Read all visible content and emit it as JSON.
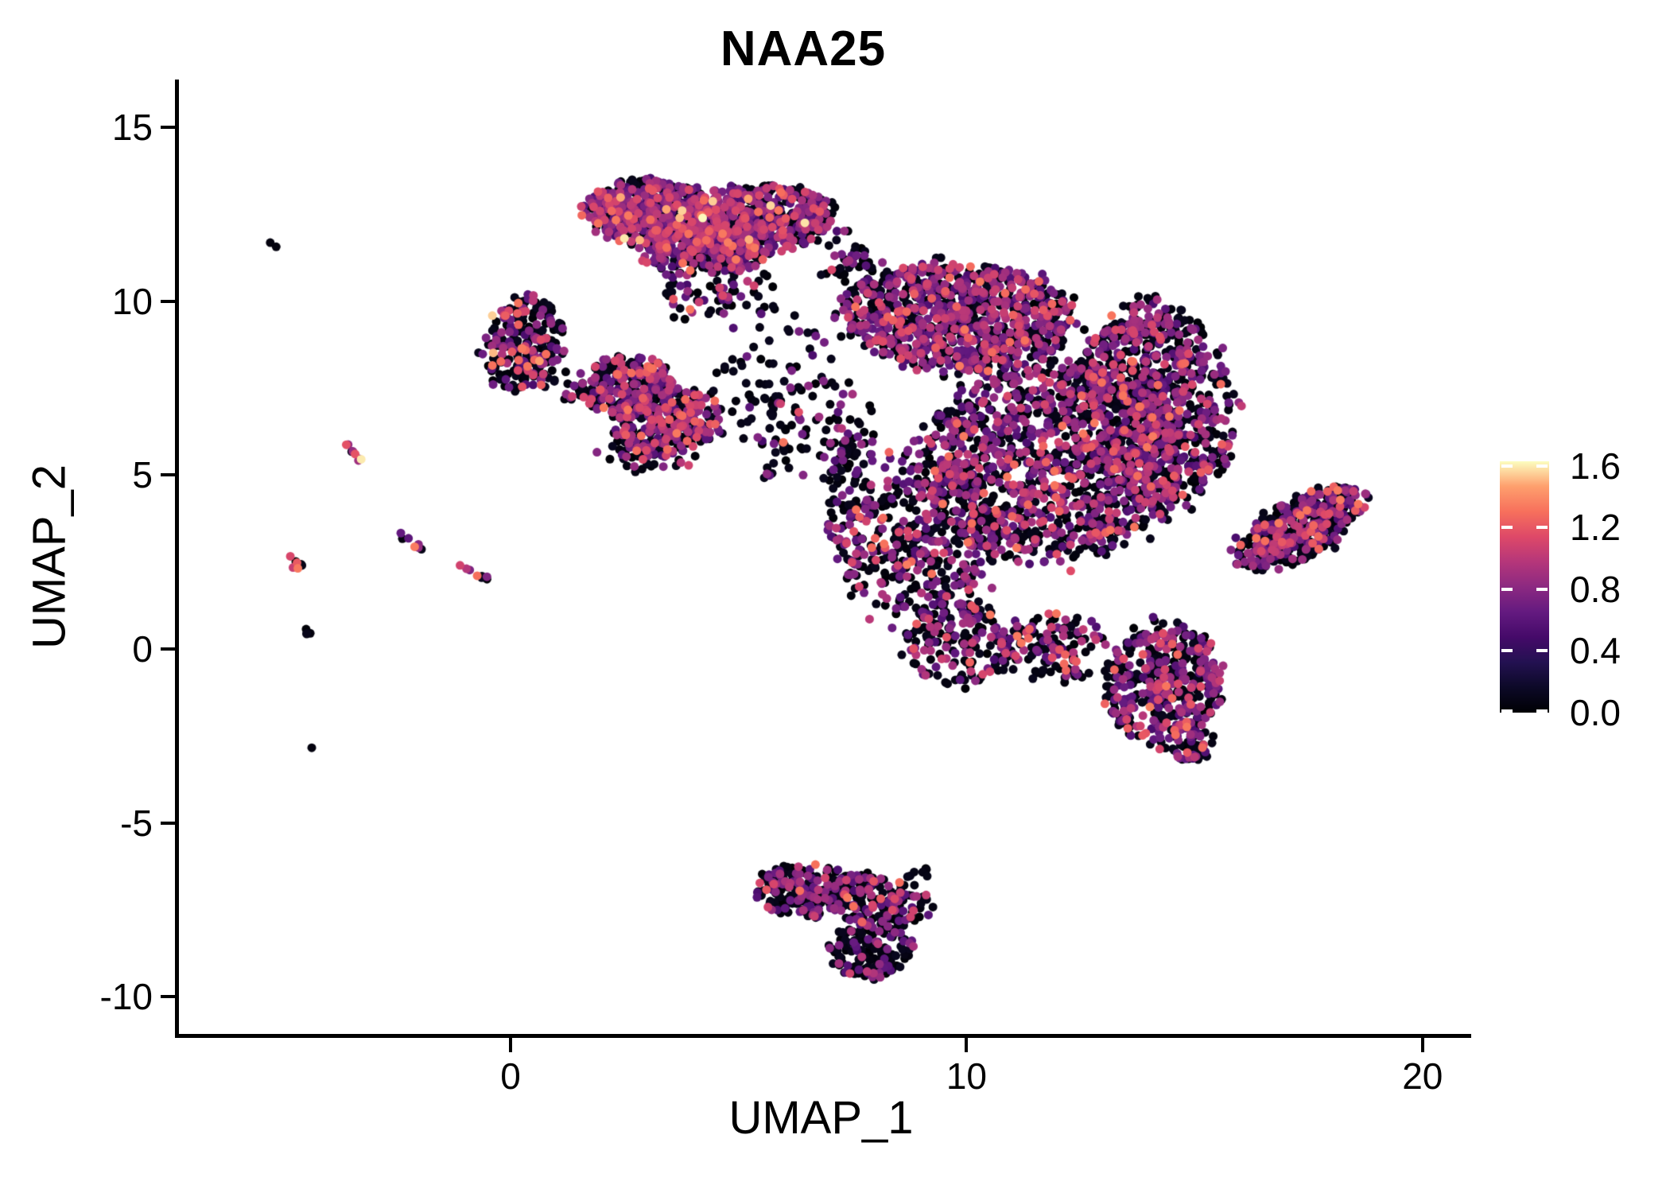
{
  "page": {
    "background": "#ffffff"
  },
  "chart_data": {
    "type": "scatter",
    "title": "NAA25",
    "xlabel": "UMAP_1",
    "ylabel": "UMAP_2",
    "xlim": [
      -7.36,
      20.98
    ],
    "ylim": [
      -11.07,
      16.38
    ],
    "xticks": [
      0,
      10,
      20
    ],
    "yticks": [
      15,
      10,
      5,
      0,
      -5,
      -10
    ],
    "grid": false,
    "legend_position": "right",
    "point_radius_px": 5.5,
    "axis_color": "#000000",
    "colorbar": {
      "vmin": 0.0,
      "vmax": 1.63,
      "ticks": [
        1.6,
        1.2,
        0.8,
        0.4,
        0.0
      ],
      "colormap": "magma",
      "stops": [
        [
          0,
          "#000004"
        ],
        [
          0.1,
          "#0c0927"
        ],
        [
          0.2,
          "#231151"
        ],
        [
          0.3,
          "#450a69"
        ],
        [
          0.4,
          "#641a80"
        ],
        [
          0.5,
          "#8c2981"
        ],
        [
          0.6,
          "#b5367a"
        ],
        [
          0.7,
          "#de4968"
        ],
        [
          0.8,
          "#f7705c"
        ],
        [
          0.9,
          "#fe9f6d"
        ],
        [
          1,
          "#fcfdbf"
        ]
      ]
    },
    "expr_bands": {
      "black": [
        0.0,
        0.12
      ],
      "purple": [
        0.5,
        0.95
      ],
      "magenta": [
        0.95,
        1.12
      ],
      "orange": [
        1.08,
        1.35
      ],
      "pale": [
        1.45,
        1.63
      ]
    },
    "clusters": [
      {
        "name": "top-blob-left",
        "shape": "gauss",
        "cx": 3.1,
        "cy": 12.55,
        "rx": 1.45,
        "ry": 0.95,
        "rot": -5,
        "n": 480,
        "mix": {
          "black": 0.42,
          "purple": 0.4,
          "magenta": 0.11,
          "orange": 0.06,
          "pale": 0.01
        }
      },
      {
        "name": "top-blob-right",
        "shape": "gauss",
        "cx": 5.35,
        "cy": 12.35,
        "rx": 1.7,
        "ry": 1.0,
        "rot": 5,
        "n": 560,
        "mix": {
          "black": 0.42,
          "purple": 0.4,
          "magenta": 0.11,
          "orange": 0.06,
          "pale": 0.01
        }
      },
      {
        "name": "top-blob-lower",
        "shape": "gauss",
        "cx": 4.2,
        "cy": 11.5,
        "rx": 1.5,
        "ry": 0.75,
        "rot": 0,
        "n": 280,
        "mix": {
          "black": 0.44,
          "purple": 0.4,
          "magenta": 0.1,
          "orange": 0.06
        }
      },
      {
        "name": "top-blob-tail",
        "shape": "gauss",
        "cx": 4.5,
        "cy": 10.2,
        "rx": 1.3,
        "ry": 1.0,
        "rot": 0,
        "n": 75,
        "spread": 0.85,
        "mix": {
          "black": 0.6,
          "purple": 0.3,
          "magenta": 0.06,
          "orange": 0.04
        }
      },
      {
        "name": "bridge-top-to-main",
        "shape": "gauss",
        "cx": 7.5,
        "cy": 11.2,
        "rx": 0.9,
        "ry": 1.0,
        "rot": 0,
        "n": 50,
        "spread": 0.9,
        "mix": {
          "black": 0.74,
          "purple": 0.21,
          "magenta": 0.03,
          "orange": 0.02
        }
      },
      {
        "name": "left-island",
        "shape": "gauss",
        "cx": 0.28,
        "cy": 8.8,
        "rx": 0.85,
        "ry": 1.35,
        "rot": -15,
        "n": 235,
        "mix": {
          "black": 0.6,
          "purple": 0.26,
          "magenta": 0.06,
          "orange": 0.07,
          "pale": 0.01
        }
      },
      {
        "name": "left-island-hook",
        "shape": "streak",
        "x1": 0.25,
        "y1": 7.95,
        "x2": 1.85,
        "y2": 7.15,
        "jitter": 0.18,
        "n": 30,
        "mix": {
          "black": 0.65,
          "purple": 0.22,
          "magenta": 0.06,
          "orange": 0.07
        }
      },
      {
        "name": "left-island-pale-dot",
        "shape": "dots",
        "pts": [
          [
            -0.4,
            9.59,
            1.55
          ]
        ]
      },
      {
        "name": "mid-island-upper",
        "shape": "gauss",
        "cx": 2.6,
        "cy": 7.55,
        "rx": 1.05,
        "ry": 0.9,
        "rot": 0,
        "n": 240,
        "mix": {
          "black": 0.48,
          "purple": 0.36,
          "magenta": 0.08,
          "orange": 0.08
        }
      },
      {
        "name": "mid-island-lower",
        "shape": "gauss",
        "cx": 3.45,
        "cy": 6.6,
        "rx": 1.15,
        "ry": 0.95,
        "rot": 10,
        "n": 300,
        "mix": {
          "black": 0.48,
          "purple": 0.36,
          "magenta": 0.08,
          "orange": 0.08
        }
      },
      {
        "name": "mid-island-fringe",
        "shape": "gauss",
        "cx": 3.0,
        "cy": 5.7,
        "rx": 1.1,
        "ry": 0.6,
        "rot": 0,
        "n": 70,
        "spread": 0.85,
        "mix": {
          "black": 0.62,
          "purple": 0.28,
          "magenta": 0.05,
          "orange": 0.05
        }
      },
      {
        "name": "sparse-field-center",
        "shape": "gauss",
        "cx": 5.9,
        "cy": 7.2,
        "rx": 1.6,
        "ry": 2.4,
        "rot": 0,
        "n": 115,
        "spread": 0.95,
        "mix": {
          "black": 0.74,
          "purple": 0.21,
          "magenta": 0.03,
          "orange": 0.02
        }
      },
      {
        "name": "main-left-fringe",
        "shape": "gauss",
        "cx": 7.35,
        "cy": 5.6,
        "rx": 0.75,
        "ry": 2.1,
        "rot": 0,
        "n": 85,
        "spread": 0.9,
        "mix": {
          "black": 0.74,
          "purple": 0.21,
          "magenta": 0.03,
          "orange": 0.02
        }
      },
      {
        "name": "main-top-band",
        "shape": "gauss",
        "cx": 9.8,
        "cy": 9.55,
        "rx": 2.55,
        "ry": 1.55,
        "rot": -4,
        "n": 950,
        "mix": {
          "black": 0.44,
          "purple": 0.41,
          "magenta": 0.1,
          "orange": 0.05
        }
      },
      {
        "name": "main-right-lobe",
        "shape": "gauss",
        "cx": 14.2,
        "cy": 7.1,
        "rx": 1.65,
        "ry": 2.9,
        "rot": 8,
        "n": 800,
        "mix": {
          "black": 0.5,
          "purple": 0.38,
          "magenta": 0.08,
          "orange": 0.04
        }
      },
      {
        "name": "main-core",
        "shape": "gauss",
        "cx": 11.9,
        "cy": 5.4,
        "rx": 2.95,
        "ry": 2.9,
        "rot": 0,
        "n": 1250,
        "mix": {
          "black": 0.52,
          "purple": 0.36,
          "magenta": 0.08,
          "orange": 0.04
        }
      },
      {
        "name": "main-lower-left",
        "shape": "gauss",
        "cx": 8.9,
        "cy": 3.1,
        "rx": 1.85,
        "ry": 2.6,
        "rot": 0,
        "n": 420,
        "spread": 0.75,
        "mix": {
          "black": 0.55,
          "purple": 0.33,
          "magenta": 0.06,
          "orange": 0.06
        }
      },
      {
        "name": "main-beak",
        "shape": "gauss",
        "cx": 9.8,
        "cy": 0.15,
        "rx": 1.15,
        "ry": 1.25,
        "rot": 20,
        "n": 165,
        "mix": {
          "black": 0.55,
          "purple": 0.33,
          "magenta": 0.06,
          "orange": 0.06
        }
      },
      {
        "name": "main-bottom-band",
        "shape": "gauss",
        "cx": 11.9,
        "cy": 0.0,
        "rx": 1.35,
        "ry": 1.0,
        "rot": -8,
        "n": 150,
        "spread": 0.8,
        "mix": {
          "black": 0.55,
          "purple": 0.33,
          "magenta": 0.06,
          "orange": 0.06
        }
      },
      {
        "name": "lower-right-blob",
        "shape": "gauss",
        "cx": 14.3,
        "cy": -1.0,
        "rx": 1.3,
        "ry": 1.75,
        "rot": -10,
        "n": 430,
        "mix": {
          "black": 0.48,
          "purple": 0.38,
          "magenta": 0.07,
          "orange": 0.07
        }
      },
      {
        "name": "lower-right-tip",
        "shape": "gauss",
        "cx": 14.85,
        "cy": -2.65,
        "rx": 0.55,
        "ry": 0.6,
        "rot": 0,
        "n": 60,
        "mix": {
          "black": 0.5,
          "purple": 0.38,
          "magenta": 0.06,
          "orange": 0.06
        }
      },
      {
        "name": "right-arm",
        "shape": "gauss",
        "cx": 17.35,
        "cy": 3.5,
        "rx": 1.7,
        "ry": 0.75,
        "rot": 40,
        "n": 430,
        "mix": {
          "black": 0.52,
          "purple": 0.36,
          "magenta": 0.07,
          "orange": 0.05
        }
      },
      {
        "name": "bottom-cluster-left",
        "shape": "gauss",
        "cx": 6.45,
        "cy": -6.95,
        "rx": 1.05,
        "ry": 0.8,
        "rot": -8,
        "n": 175,
        "mix": {
          "black": 0.62,
          "purple": 0.3,
          "magenta": 0.04,
          "orange": 0.04
        }
      },
      {
        "name": "bottom-cluster-right",
        "shape": "gauss",
        "cx": 8.0,
        "cy": -7.25,
        "rx": 1.3,
        "ry": 0.75,
        "rot": -10,
        "n": 175,
        "mix": {
          "black": 0.62,
          "purple": 0.3,
          "magenta": 0.04,
          "orange": 0.04
        }
      },
      {
        "name": "bottom-cluster-lower",
        "shape": "gauss",
        "cx": 7.9,
        "cy": -8.6,
        "rx": 0.95,
        "ry": 0.85,
        "rot": 30,
        "n": 150,
        "mix": {
          "black": 0.62,
          "purple": 0.3,
          "magenta": 0.04,
          "orange": 0.04
        }
      },
      {
        "name": "bottom-cluster-antenna",
        "shape": "streak",
        "x1": 8.55,
        "y1": -6.65,
        "x2": 9.2,
        "y2": -6.35,
        "jitter": 0.08,
        "n": 8,
        "mix": {
          "black": 0.9,
          "purple": 0.1
        }
      },
      {
        "name": "streak-1",
        "shape": "streak",
        "x1": -3.66,
        "y1": 5.92,
        "x2": -3.22,
        "y2": 5.44,
        "jitter": 0.05,
        "n": 8,
        "mix": {
          "black": 0.3,
          "purple": 0.3,
          "magenta": 0.12,
          "orange": 0.2,
          "pale": 0.08
        }
      },
      {
        "name": "streak-2",
        "shape": "streak",
        "x1": -2.44,
        "y1": 3.32,
        "x2": -2.02,
        "y2": 2.92,
        "jitter": 0.05,
        "n": 7,
        "mix": {
          "black": 0.35,
          "purple": 0.3,
          "magenta": 0.12,
          "orange": 0.23
        }
      },
      {
        "name": "streak-3",
        "shape": "streak",
        "x1": -4.9,
        "y1": 2.72,
        "x2": -4.5,
        "y2": 2.22,
        "jitter": 0.05,
        "n": 7,
        "mix": {
          "black": 0.4,
          "purple": 0.27,
          "magenta": 0.13,
          "orange": 0.2
        }
      },
      {
        "name": "streak-4",
        "shape": "streak",
        "x1": -1.12,
        "y1": 2.49,
        "x2": -0.5,
        "y2": 2.0,
        "jitter": 0.05,
        "n": 8,
        "mix": {
          "black": 0.35,
          "purple": 0.25,
          "magenta": 0.15,
          "orange": 0.25
        }
      },
      {
        "name": "streak-5-dark-pair",
        "shape": "streak",
        "x1": -4.7,
        "y1": 0.68,
        "x2": -4.42,
        "y2": 0.4,
        "jitter": 0.04,
        "n": 4,
        "mix": {
          "black": 1.0
        }
      },
      {
        "name": "lone-dot-pair-upper-left",
        "shape": "dots",
        "pts": [
          [
            -5.27,
            11.69,
            0.05
          ],
          [
            -5.14,
            11.57,
            0.05
          ]
        ]
      },
      {
        "name": "lone-dot-lower-left",
        "shape": "dots",
        "pts": [
          [
            -4.36,
            -2.84,
            0.05
          ]
        ]
      }
    ]
  }
}
